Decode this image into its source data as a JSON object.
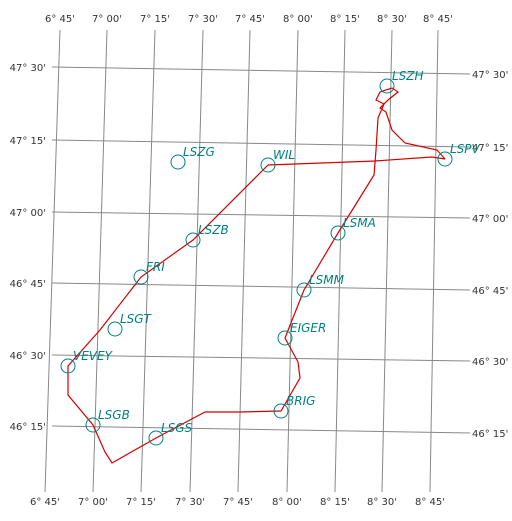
{
  "longitudes": [
    "6° 45'",
    "7° 00'",
    "7° 15'",
    "7° 30'",
    "7° 45'",
    "8° 00'",
    "8° 15'",
    "8° 30'",
    "8° 45'"
  ],
  "latitudes": [
    "47° 30'",
    "47° 15'",
    "47° 00'",
    "46° 45'",
    "46° 30'",
    "46° 15'"
  ],
  "waypoints": [
    "LSZH",
    "LSPV",
    "LSZG",
    "WIL",
    "LSZB",
    "LSMA",
    "FRI",
    "LSMM",
    "LSGT",
    "EIGER",
    "VEVEY",
    "LSGB",
    "BRIG",
    "LSGS"
  ]
}
